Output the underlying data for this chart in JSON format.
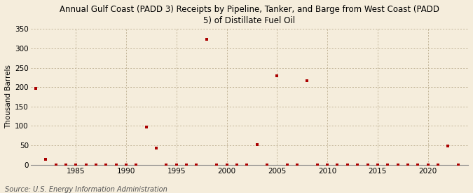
{
  "title": "Annual Gulf Coast (PADD 3) Receipts by Pipeline, Tanker, and Barge from West Coast (PADD\n5) of Distillate Fuel Oil",
  "ylabel": "Thousand Barrels",
  "source": "Source: U.S. Energy Information Administration",
  "background_color": "#f5eddc",
  "plot_bg_color": "#f5eddc",
  "point_color": "#aa0000",
  "grid_color": "#b0a080",
  "years": [
    1981,
    1982,
    1983,
    1984,
    1985,
    1986,
    1987,
    1988,
    1989,
    1990,
    1991,
    1992,
    1993,
    1994,
    1995,
    1996,
    1997,
    1998,
    1999,
    2000,
    2001,
    2002,
    2003,
    2004,
    2005,
    2006,
    2007,
    2008,
    2009,
    2010,
    2011,
    2012,
    2013,
    2014,
    2015,
    2016,
    2017,
    2018,
    2019,
    2020,
    2021,
    2022,
    2023
  ],
  "values": [
    196,
    14,
    0,
    0,
    0,
    0,
    0,
    0,
    0,
    0,
    0,
    97,
    42,
    0,
    0,
    0,
    0,
    323,
    0,
    0,
    0,
    0,
    51,
    0,
    229,
    0,
    0,
    217,
    0,
    0,
    0,
    0,
    0,
    0,
    0,
    0,
    0,
    0,
    0,
    0,
    0,
    49,
    0
  ],
  "ylim": [
    0,
    350
  ],
  "yticks": [
    0,
    50,
    100,
    150,
    200,
    250,
    300,
    350
  ],
  "xlim": [
    1980.5,
    2024
  ],
  "xticks": [
    1985,
    1990,
    1995,
    2000,
    2005,
    2010,
    2015,
    2020
  ],
  "title_fontsize": 8.5,
  "tick_fontsize": 7.5,
  "ylabel_fontsize": 7.5,
  "source_fontsize": 7
}
